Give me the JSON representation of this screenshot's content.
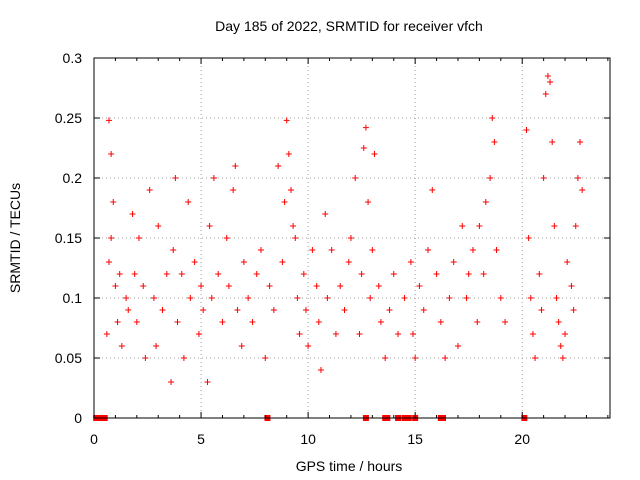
{
  "chart_data": {
    "type": "scatter",
    "title": "Day 185 of 2022, SRMTID for receiver vfch",
    "xlabel": "GPS time / hours",
    "ylabel": "SRMTID / TECUs",
    "xlim": [
      0,
      24.1
    ],
    "ylim": [
      0,
      0.3
    ],
    "x_ticks": [
      0,
      5,
      10,
      15,
      20
    ],
    "x_tick_labels": [
      "0",
      "5",
      "10",
      "15",
      "20"
    ],
    "y_ticks": [
      0,
      0.05,
      0.1,
      0.15,
      0.2,
      0.25,
      0.3
    ],
    "y_tick_labels": [
      "0",
      "0.05",
      "0.1",
      "0.15",
      "0.2",
      "0.25",
      "0.3"
    ],
    "grid": true,
    "marker": "plus",
    "color": "#ff0000",
    "series": [
      {
        "name": "SRMTID",
        "points": [
          [
            0.7,
            0.248
          ],
          [
            0.8,
            0.22
          ],
          [
            0.9,
            0.18
          ],
          [
            0.6,
            0.07
          ],
          [
            0.7,
            0.13
          ],
          [
            0.8,
            0.15
          ],
          [
            1.0,
            0.11
          ],
          [
            1.1,
            0.08
          ],
          [
            1.2,
            0.12
          ],
          [
            1.3,
            0.06
          ],
          [
            1.5,
            0.1
          ],
          [
            1.6,
            0.09
          ],
          [
            1.8,
            0.17
          ],
          [
            1.9,
            0.12
          ],
          [
            2.0,
            0.08
          ],
          [
            2.1,
            0.15
          ],
          [
            2.3,
            0.11
          ],
          [
            2.4,
            0.05
          ],
          [
            2.6,
            0.19
          ],
          [
            2.8,
            0.1
          ],
          [
            2.9,
            0.06
          ],
          [
            3.0,
            0.16
          ],
          [
            3.2,
            0.09
          ],
          [
            3.4,
            0.12
          ],
          [
            3.6,
            0.03
          ],
          [
            3.7,
            0.14
          ],
          [
            3.8,
            0.2
          ],
          [
            3.9,
            0.08
          ],
          [
            4.1,
            0.12
          ],
          [
            4.2,
            0.05
          ],
          [
            4.4,
            0.18
          ],
          [
            4.5,
            0.1
          ],
          [
            4.7,
            0.13
          ],
          [
            4.9,
            0.07
          ],
          [
            5.0,
            0.11
          ],
          [
            5.1,
            0.09
          ],
          [
            5.3,
            0.03
          ],
          [
            5.4,
            0.16
          ],
          [
            5.5,
            0.1
          ],
          [
            5.6,
            0.2
          ],
          [
            5.8,
            0.12
          ],
          [
            6.0,
            0.08
          ],
          [
            6.2,
            0.15
          ],
          [
            6.3,
            0.11
          ],
          [
            6.5,
            0.19
          ],
          [
            6.6,
            0.21
          ],
          [
            6.7,
            0.09
          ],
          [
            6.9,
            0.06
          ],
          [
            7.0,
            0.13
          ],
          [
            7.2,
            0.1
          ],
          [
            7.4,
            0.08
          ],
          [
            7.6,
            0.12
          ],
          [
            7.8,
            0.14
          ],
          [
            8.0,
            0.05
          ],
          [
            8.2,
            0.11
          ],
          [
            8.4,
            0.09
          ],
          [
            8.6,
            0.21
          ],
          [
            8.8,
            0.13
          ],
          [
            8.9,
            0.18
          ],
          [
            9.0,
            0.248
          ],
          [
            9.1,
            0.22
          ],
          [
            9.2,
            0.19
          ],
          [
            9.3,
            0.16
          ],
          [
            9.4,
            0.15
          ],
          [
            9.5,
            0.1
          ],
          [
            9.6,
            0.07
          ],
          [
            9.8,
            0.12
          ],
          [
            9.9,
            0.09
          ],
          [
            10.0,
            0.06
          ],
          [
            10.2,
            0.14
          ],
          [
            10.4,
            0.11
          ],
          [
            10.5,
            0.08
          ],
          [
            10.6,
            0.04
          ],
          [
            10.8,
            0.17
          ],
          [
            10.9,
            0.1
          ],
          [
            11.1,
            0.14
          ],
          [
            11.3,
            0.07
          ],
          [
            11.5,
            0.11
          ],
          [
            11.7,
            0.09
          ],
          [
            11.9,
            0.13
          ],
          [
            12.0,
            0.15
          ],
          [
            12.2,
            0.2
          ],
          [
            12.4,
            0.07
          ],
          [
            12.5,
            0.12
          ],
          [
            12.6,
            0.225
          ],
          [
            12.7,
            0.242
          ],
          [
            12.8,
            0.18
          ],
          [
            12.9,
            0.1
          ],
          [
            13.0,
            0.14
          ],
          [
            13.1,
            0.22
          ],
          [
            13.3,
            0.11
          ],
          [
            13.4,
            0.08
          ],
          [
            13.6,
            0.05
          ],
          [
            13.8,
            0.09
          ],
          [
            14.0,
            0.12
          ],
          [
            14.2,
            0.07
          ],
          [
            14.5,
            0.1
          ],
          [
            14.8,
            0.13
          ],
          [
            14.9,
            0.07
          ],
          [
            15.0,
            0.05
          ],
          [
            15.2,
            0.11
          ],
          [
            15.4,
            0.09
          ],
          [
            15.6,
            0.14
          ],
          [
            15.8,
            0.19
          ],
          [
            16.0,
            0.12
          ],
          [
            16.2,
            0.08
          ],
          [
            16.4,
            0.05
          ],
          [
            16.6,
            0.1
          ],
          [
            16.8,
            0.13
          ],
          [
            17.0,
            0.06
          ],
          [
            17.2,
            0.16
          ],
          [
            17.4,
            0.1
          ],
          [
            17.5,
            0.12
          ],
          [
            17.7,
            0.14
          ],
          [
            17.9,
            0.08
          ],
          [
            18.0,
            0.16
          ],
          [
            18.2,
            0.12
          ],
          [
            18.3,
            0.18
          ],
          [
            18.5,
            0.2
          ],
          [
            18.6,
            0.25
          ],
          [
            18.7,
            0.23
          ],
          [
            18.8,
            0.14
          ],
          [
            19.0,
            0.1
          ],
          [
            19.2,
            0.08
          ],
          [
            20.2,
            0.24
          ],
          [
            20.3,
            0.15
          ],
          [
            20.4,
            0.1
          ],
          [
            20.5,
            0.07
          ],
          [
            20.6,
            0.05
          ],
          [
            20.8,
            0.12
          ],
          [
            20.9,
            0.09
          ],
          [
            21.0,
            0.2
          ],
          [
            21.1,
            0.27
          ],
          [
            21.2,
            0.285
          ],
          [
            21.3,
            0.28
          ],
          [
            21.4,
            0.23
          ],
          [
            21.5,
            0.16
          ],
          [
            21.6,
            0.1
          ],
          [
            21.7,
            0.08
          ],
          [
            21.8,
            0.06
          ],
          [
            21.9,
            0.05
          ],
          [
            22.0,
            0.07
          ],
          [
            22.1,
            0.13
          ],
          [
            22.3,
            0.11
          ],
          [
            22.4,
            0.09
          ],
          [
            22.5,
            0.16
          ],
          [
            22.6,
            0.2
          ],
          [
            22.7,
            0.23
          ],
          [
            22.8,
            0.19
          ]
        ]
      }
    ],
    "zero_points_x": [
      0.1,
      0.3,
      0.5,
      8.1,
      12.7,
      13.6,
      13.7,
      14.2,
      14.5,
      14.7,
      15.0,
      16.2,
      16.3,
      20.1
    ]
  }
}
